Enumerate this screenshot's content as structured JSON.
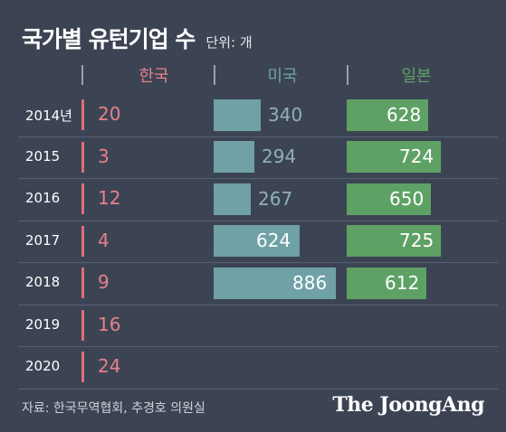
{
  "title": "국가별 유턴기업 수",
  "unit": "단위: 개",
  "source": "자료: 한국무역협회, 추경호 의원실",
  "brand": "The JoongAng",
  "colors": {
    "background": "#3c4454",
    "korea": "#e8808b",
    "us": "#6fa1a6",
    "japan": "#5ea165"
  },
  "chart_data": {
    "type": "table",
    "columns": [
      "한국",
      "미국",
      "일본"
    ],
    "categories": [
      "2014년",
      "2015",
      "2016",
      "2017",
      "2018",
      "2019",
      "2020"
    ],
    "series": [
      {
        "name": "한국",
        "values": [
          20,
          3,
          12,
          4,
          9,
          16,
          24
        ]
      },
      {
        "name": "미국",
        "values": [
          340,
          294,
          267,
          624,
          886,
          null,
          null
        ]
      },
      {
        "name": "일본",
        "values": [
          628,
          724,
          650,
          725,
          612,
          null,
          null
        ]
      }
    ],
    "grid": true
  }
}
